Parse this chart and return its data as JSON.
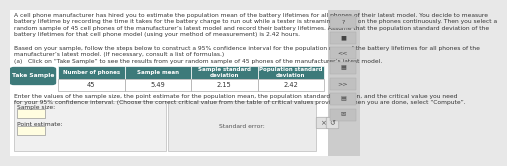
{
  "background_color": "#e8e8e8",
  "body_bg": "#ffffff",
  "para1": "A cell phone manufacturer has hired you to estimate the population mean of the battery lifetimes for all phones of their latest model. You decide to measure\nbattery lifetime by recording the time it takes for the battery charge to run out while a tester is streaming videos on the phones continuously. Then you select a\nrandom sample of 45 cell phones of the manufacturer’s latest model and record their battery lifetimes. Assume that the population standard deviation of the\nbattery lifetimes for that cell phone model (using your method of measurement) is 2.42 hours.",
  "para2": "Based on your sample, follow the steps below to construct a 95% confidence interval for the population mean of the battery lifetimes for all phones of the\nmanufacturer’s latest model. (If necessary, consult a list of formulas.)",
  "step_a": "(a)   Click on “Take Sample” to see the results from your random sample of 45 phones of the manufacturer’s latest model.",
  "take_sample_label": "Take Sample",
  "take_sample_bg": "#3d7a7a",
  "table_header_bg": "#3d7a7a",
  "col_headers": [
    "Number of phones",
    "Sample mean",
    "Sample standard\ndeviation",
    "Population standard\ndeviation"
  ],
  "col_values": [
    "45",
    "5.49",
    "2.15",
    "2.42"
  ],
  "instruction": "Enter the values of the sample size, the point estimate for the population mean, the population standard deviation, and the critical value you need\nfor your 95% confidence interval. (Choose the correct critical value from the table of critical values provided.) When you are done, select “Compute”.",
  "input_labels": [
    "Sample size:",
    "Point estimate:"
  ],
  "std_error_label": "Standard error:",
  "input_box_bg": "#fffde0",
  "sidebar_icons": [
    "?",
    "■",
    "<<",
    "▦",
    ">>",
    "▤",
    "✉"
  ],
  "sidebar_bg": "#cccccc"
}
